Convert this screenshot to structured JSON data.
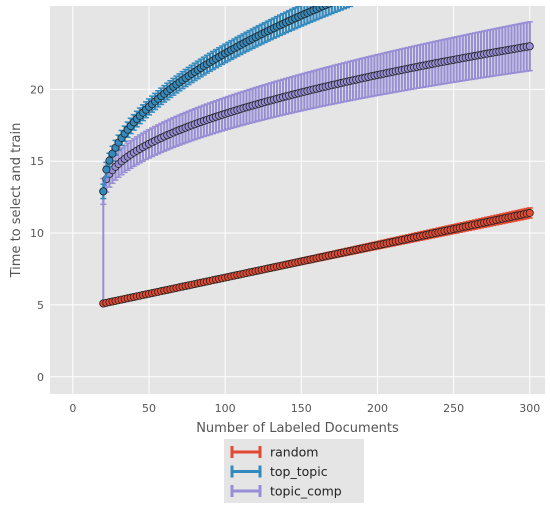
{
  "chart_data": {
    "type": "line",
    "title": "",
    "xlabel": "Number of Labeled Documents",
    "ylabel": "Time to select and train",
    "xlim": [
      -15,
      310
    ],
    "ylim": [
      -1.2,
      25.8
    ],
    "x_ticks": [
      0,
      50,
      100,
      150,
      200,
      250,
      300
    ],
    "y_ticks": [
      0,
      5,
      10,
      15,
      20
    ],
    "grid": true,
    "legend_position": "bottom-center outside",
    "series": [
      {
        "name": "random",
        "color": "#e24a33",
        "x_start": 20,
        "x_end": 300,
        "x_step": 2,
        "mean": {
          "start": 5.1,
          "end": 11.4,
          "shape": "linear"
        },
        "error": {
          "start": 0.08,
          "end": 0.35
        }
      },
      {
        "name": "top_topic",
        "color": "#348abd",
        "x_start": 20,
        "x_end": 300,
        "x_step": 2,
        "mean": {
          "start": 12.9,
          "at_x_100": 22.5,
          "at_x_140": 25.7,
          "shape": "sqrt"
        },
        "error": {
          "start": 0.5,
          "end": 1.0
        }
      },
      {
        "name": "topic_comp",
        "color": "#988ed5",
        "x_start": 20,
        "x_end": 300,
        "x_step": 2,
        "first_point": {
          "x": 20,
          "y": 5.1
        },
        "mean": {
          "start": 12.9,
          "end": 23.0,
          "shape": "sqrt"
        },
        "error": {
          "start": 0.9,
          "end": 1.7
        }
      }
    ]
  }
}
